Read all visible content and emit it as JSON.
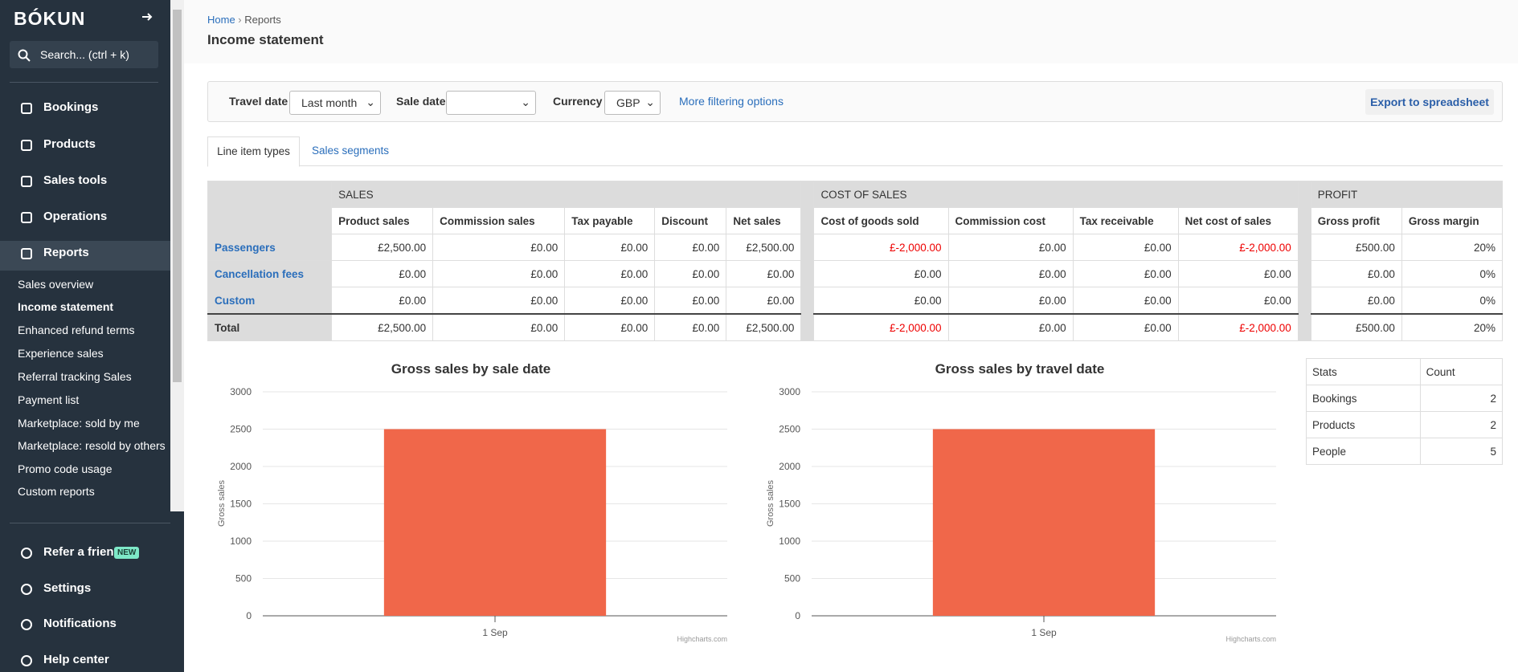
{
  "sidebar": {
    "logo": "BÓKUN",
    "search": "Search... (ctrl + k)",
    "main_nav": [
      "Bookings",
      "Products",
      "Sales tools",
      "Operations",
      "Reports"
    ],
    "reports_menu": [
      "Sales overview",
      "Income statement",
      "Enhanced refund terms",
      "Experience sales",
      "Referral tracking Sales",
      "Payment list",
      "Marketplace: sold by me",
      "Marketplace: resold by others",
      "Promo code usage",
      "Custom reports"
    ],
    "bottom_nav": [
      "Refer a friend",
      "Settings",
      "Notifications",
      "Help center"
    ],
    "new_badge": "NEW"
  },
  "breadcrumb": [
    "Home",
    "Reports"
  ],
  "title": "Income statement",
  "filters": {
    "travel_date_label": "Travel date",
    "travel_date": "Last month",
    "sale_date_label": "Sale date",
    "currency_label": "Currency",
    "currency": "GBP",
    "more": "More filtering options",
    "export": "Export to spreadsheet"
  },
  "tabs": [
    "Line item types",
    "Sales segments"
  ],
  "table": {
    "groups": [
      "SALES",
      "COST OF SALES",
      "PROFIT"
    ],
    "columns": [
      [
        "Product sales",
        "Commission sales",
        "Tax payable",
        "Discount",
        "Net sales"
      ],
      [
        "Cost of goods sold",
        "Commission cost",
        "Tax receivable",
        "Net cost of sales"
      ],
      [
        "Gross profit",
        "Gross margin"
      ]
    ],
    "rows": [
      {
        "label": "Passengers",
        "cells": [
          [
            "£2,500.00",
            "£0.00",
            "£0.00",
            "£0.00",
            "£2,500.00"
          ],
          [
            "£-2,000.00",
            "£0.00",
            "£0.00",
            "£-2,000.00"
          ],
          [
            "£500.00",
            "20%"
          ]
        ]
      },
      {
        "label": "Cancellation fees",
        "cells": [
          [
            "£0.00",
            "£0.00",
            "£0.00",
            "£0.00",
            "£0.00"
          ],
          [
            "£0.00",
            "£0.00",
            "£0.00",
            "£0.00"
          ],
          [
            "£0.00",
            "0%"
          ]
        ]
      },
      {
        "label": "Custom",
        "cells": [
          [
            "£0.00",
            "£0.00",
            "£0.00",
            "£0.00",
            "£0.00"
          ],
          [
            "£0.00",
            "£0.00",
            "£0.00",
            "£0.00"
          ],
          [
            "£0.00",
            "0%"
          ]
        ]
      }
    ],
    "total": {
      "label": "Total",
      "cells": [
        [
          "£2,500.00",
          "£0.00",
          "£0.00",
          "£0.00",
          "£2,500.00"
        ],
        [
          "£-2,000.00",
          "£0.00",
          "£0.00",
          "£-2,000.00"
        ],
        [
          "£500.00",
          "20%"
        ]
      ]
    }
  },
  "chart_data": [
    {
      "type": "bar",
      "title": "Gross sales by sale date",
      "y_axis_label": "Gross sales",
      "categories": [
        "1 Sep"
      ],
      "values": [
        2500
      ],
      "ylim": [
        0,
        3000
      ],
      "yticks": [
        0,
        500,
        1000,
        1500,
        2000,
        2500,
        3000
      ],
      "grid": true,
      "color": "#f0674a",
      "credit": "Highcharts.com"
    },
    {
      "type": "bar",
      "title": "Gross sales by travel date",
      "y_axis_label": "Gross sales",
      "categories": [
        "1 Sep"
      ],
      "values": [
        2500
      ],
      "ylim": [
        0,
        3000
      ],
      "yticks": [
        0,
        500,
        1000,
        1500,
        2000,
        2500,
        3000
      ],
      "grid": true,
      "color": "#f0674a",
      "credit": "Highcharts.com"
    }
  ],
  "stats": {
    "header": [
      "Stats",
      "Count"
    ],
    "rows": [
      [
        "Bookings",
        2
      ],
      [
        "Products",
        2
      ],
      [
        "People",
        5
      ]
    ]
  }
}
